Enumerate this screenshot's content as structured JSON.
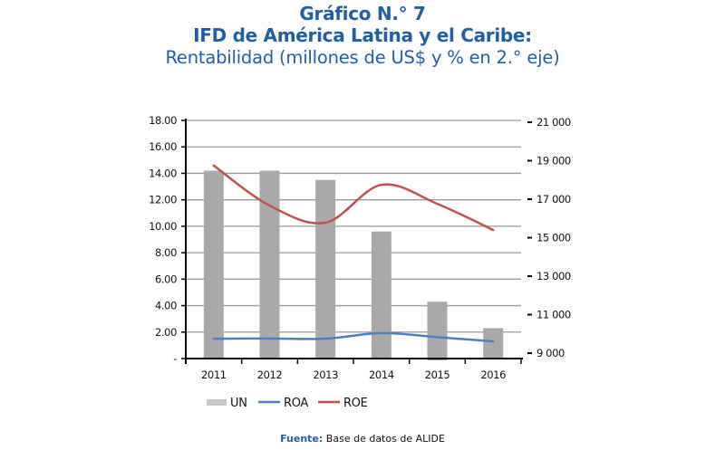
{
  "title": {
    "line1": "Gráfico N.° 7",
    "line2": "IFD de América Latina y el Caribe:",
    "line3": "Rentabilidad (millones de US$ y % en 2.° eje)"
  },
  "source": {
    "label": "Fuente:",
    "text": " Base de datos de ALIDE"
  },
  "colors": {
    "title": "#1f5fa8",
    "bars": "#a9a9a9",
    "roa": "#4a7fc1",
    "roe": "#c0504d",
    "grid": "#9a9a9a",
    "axis": "#000000"
  },
  "chart_data": {
    "type": "bar",
    "title": "Gráfico N.° 7 — IFD de América Latina y el Caribe: Rentabilidad (millones de US$ y % en 2.° eje)",
    "categories": [
      "2011",
      "2012",
      "2013",
      "2014",
      "2015",
      "2016"
    ],
    "xlabel": "",
    "ylabel": "",
    "y_axis": {
      "range": [
        0,
        18
      ],
      "ticks": [
        0,
        2,
        4,
        6,
        8,
        10,
        12,
        14,
        16,
        18
      ],
      "tick_labels": [
        "-",
        "2.00",
        "4.00",
        "6.00",
        "8.00",
        "10.00",
        "12.00",
        "14.00",
        "16.00",
        "18.00"
      ]
    },
    "y2_axis": {
      "range": [
        9000,
        21000
      ],
      "ticks": [
        9000,
        11000,
        13000,
        15000,
        17000,
        19000,
        21000
      ],
      "tick_labels": [
        "9 000",
        "11 000",
        "13 000",
        "15 000",
        "17 000",
        "19 000",
        "21 000"
      ]
    },
    "grid": true,
    "legend_position": "bottom-left",
    "series": [
      {
        "name": "UN",
        "type": "bar",
        "axis": "y",
        "values": [
          14.2,
          14.2,
          13.5,
          9.6,
          4.3,
          2.3
        ]
      },
      {
        "name": "ROA",
        "type": "line",
        "axis": "y2",
        "values": [
          9750,
          9760,
          9750,
          10040,
          9830,
          9610
        ]
      },
      {
        "name": "ROE",
        "type": "line",
        "axis": "y2",
        "values": [
          18750,
          16670,
          15780,
          17750,
          16760,
          15400
        ]
      }
    ]
  }
}
